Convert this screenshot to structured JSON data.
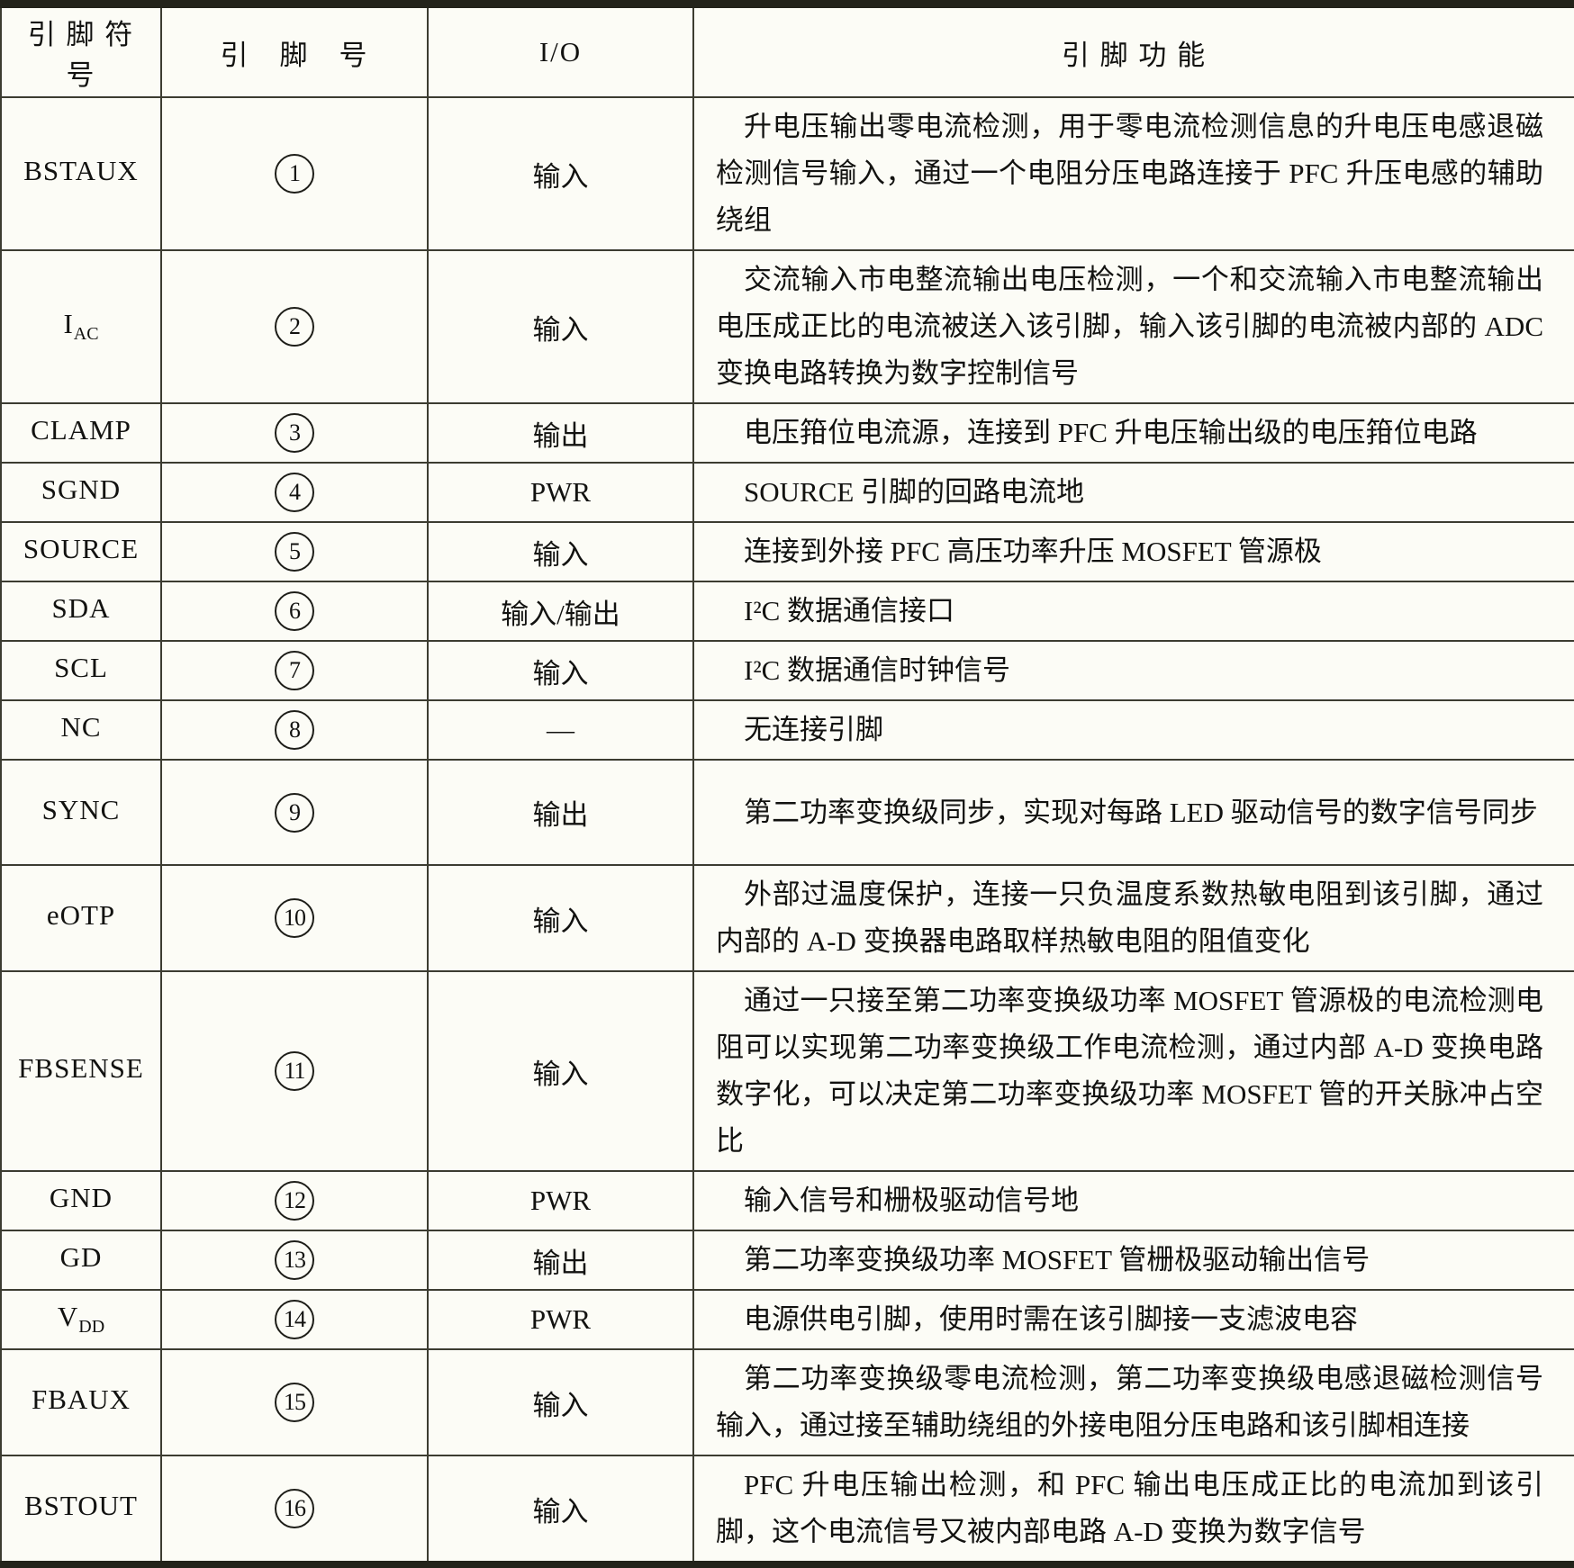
{
  "table": {
    "headers": {
      "symbol": "引 脚 符 号",
      "number": "引　脚　号",
      "io": "I/O",
      "function": "引 脚 功 能"
    },
    "rows": [
      {
        "symbol": "BSTAUX",
        "number": "1",
        "io": "输入",
        "function": "升电压输出零电流检测，用于零电流检测信息的升电压电感退磁检测信号输入，通过一个电阻分压电路连接于 PFC 升压电感的辅助绕组"
      },
      {
        "symbol": "I",
        "sub": "AC",
        "number": "2",
        "io": "输入",
        "function": "交流输入市电整流输出电压检测，一个和交流输入市电整流输出电压成正比的电流被送入该引脚，输入该引脚的电流被内部的 ADC 变换电路转换为数字控制信号"
      },
      {
        "symbol": "CLAMP",
        "number": "3",
        "io": "输出",
        "function": "电压箝位电流源，连接到 PFC 升电压输出级的电压箝位电路"
      },
      {
        "symbol": "SGND",
        "number": "4",
        "io": "PWR",
        "function": "SOURCE 引脚的回路电流地"
      },
      {
        "symbol": "SOURCE",
        "number": "5",
        "io": "输入",
        "function": "连接到外接 PFC 高压功率升压 MOSFET 管源极"
      },
      {
        "symbol": "SDA",
        "number": "6",
        "io": "输入/输出",
        "function": "I²C 数据通信接口"
      },
      {
        "symbol": "SCL",
        "number": "7",
        "io": "输入",
        "function": "I²C 数据通信时钟信号"
      },
      {
        "symbol": "NC",
        "number": "8",
        "io": "—",
        "function": "无连接引脚"
      },
      {
        "symbol": "SYNC",
        "number": "9",
        "io": "输出",
        "function": "第二功率变换级同步，实现对每路 LED 驱动信号的数字信号同步"
      },
      {
        "symbol": "eOTP",
        "number": "10",
        "io": "输入",
        "function": "外部过温度保护，连接一只负温度系数热敏电阻到该引脚，通过内部的 A-D 变换器电路取样热敏电阻的阻值变化"
      },
      {
        "symbol": "FBSENSE",
        "number": "11",
        "io": "输入",
        "function": "通过一只接至第二功率变换级功率 MOSFET 管源极的电流检测电阻可以实现第二功率变换级工作电流检测，通过内部 A-D 变换电路数字化，可以决定第二功率变换级功率 MOSFET 管的开关脉冲占空比"
      },
      {
        "symbol": "GND",
        "number": "12",
        "io": "PWR",
        "function": "输入信号和栅极驱动信号地"
      },
      {
        "symbol": "GD",
        "number": "13",
        "io": "输出",
        "function": "第二功率变换级功率 MOSFET 管栅极驱动输出信号"
      },
      {
        "symbol": "V",
        "sub": "DD",
        "number": "14",
        "io": "PWR",
        "function": "电源供电引脚，使用时需在该引脚接一支滤波电容"
      },
      {
        "symbol": "FBAUX",
        "number": "15",
        "io": "输入",
        "function": "第二功率变换级零电流检测，第二功率变换级电感退磁检测信号输入，通过接至辅助绕组的外接电阻分压电路和该引脚相连接"
      },
      {
        "symbol": "BSTOUT",
        "number": "16",
        "io": "输入",
        "function": "PFC 升电压输出检测，和 PFC 输出电压成正比的电流加到该引脚，这个电流信号又被内部电路 A-D 变换为数字信号"
      }
    ]
  }
}
